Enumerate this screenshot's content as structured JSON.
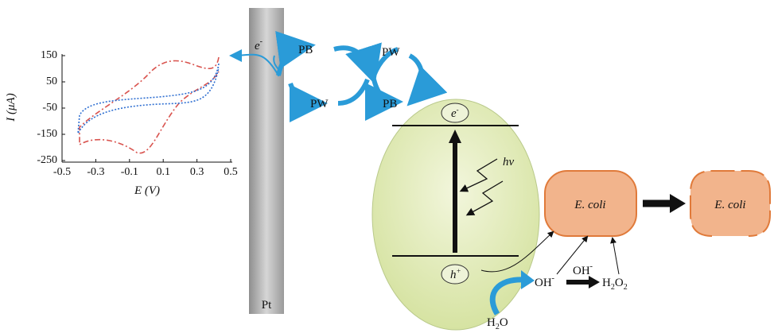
{
  "inset_plot": {
    "y_label": "I (μA)",
    "x_label": "E (V)",
    "yticks": [
      150,
      50,
      -50,
      -150,
      -250
    ],
    "ylim": [
      -250,
      150
    ],
    "xticks": [
      -0.5,
      -0.3,
      -0.1,
      0.1,
      0.3,
      0.5
    ],
    "xlim": [
      -0.5,
      0.5
    ]
  },
  "electrode": {
    "label": "Pt",
    "electron": {
      "symbol": "e",
      "charge": "-"
    }
  },
  "redox": {
    "pb_top": "PB",
    "pw_bottom": "PW",
    "pw_top": "PW",
    "pb_bottom": "PB"
  },
  "photocatalyst": {
    "electron": {
      "symbol": "e",
      "charge": "-"
    },
    "hole": {
      "symbol": "h",
      "charge": "+"
    },
    "light": "hv"
  },
  "bacteria": {
    "before": "E. coli",
    "after": "E. coli"
  },
  "species": {
    "oh_1": {
      "symbol": "OH",
      "charge": "-"
    },
    "oh_2": {
      "symbol": "OH",
      "charge": "-"
    },
    "h2o2": [
      "H",
      "2",
      "O",
      "2"
    ],
    "h2o": [
      "H",
      "2",
      "O"
    ]
  }
}
